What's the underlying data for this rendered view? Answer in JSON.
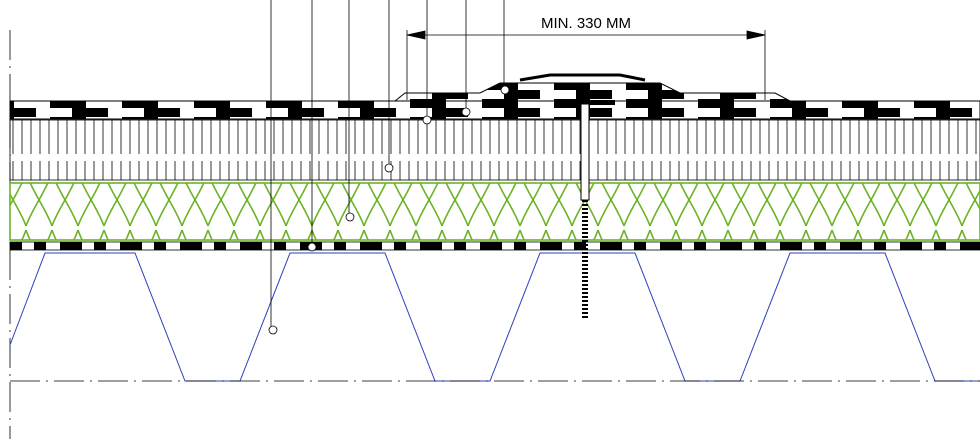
{
  "dimension": {
    "label": "MIN. 330 MM"
  }
}
